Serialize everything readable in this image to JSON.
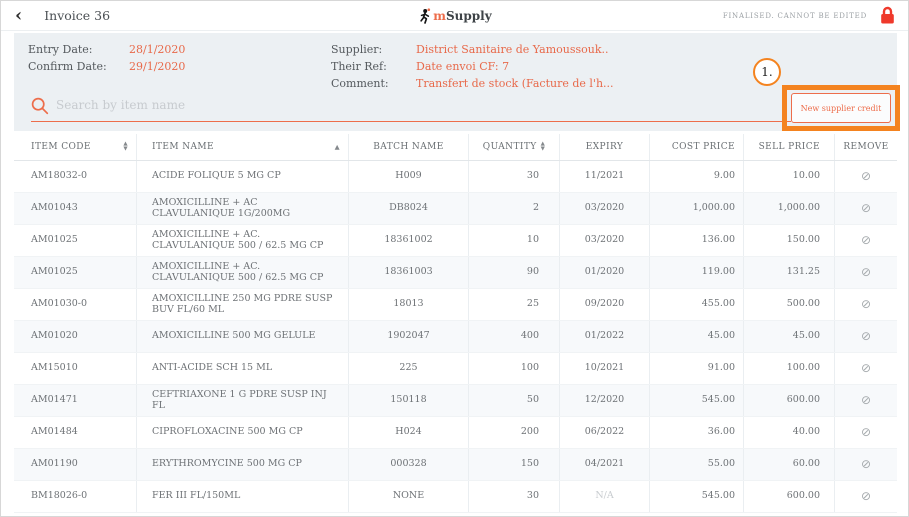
{
  "topbar": {
    "back_icon": "‹",
    "title": "Invoice 36",
    "logo_m": "m",
    "logo_rest": "Supply",
    "status": "FINALISED. CANNOT BE EDITED",
    "lock_icon": "lock"
  },
  "info": {
    "left": [
      {
        "label": "Entry Date:",
        "value": "28/1/2020"
      },
      {
        "label": "Confirm Date:",
        "value": "29/1/2020"
      }
    ],
    "right": [
      {
        "label": "Supplier:",
        "value": "District Sanitaire de Yamoussouk.."
      },
      {
        "label": "Their Ref:",
        "value": "Date envoi CF: 7"
      },
      {
        "label": "Comment:",
        "value": "Transfert de stock (Facture de l'h..."
      }
    ]
  },
  "search": {
    "placeholder": "Search by item name"
  },
  "annotation": {
    "step": "1."
  },
  "actions": {
    "new_supplier_credit": "New supplier credit"
  },
  "table": {
    "columns": [
      {
        "key": "code",
        "label": "ITEM CODE",
        "sort": "both"
      },
      {
        "key": "name",
        "label": "ITEM NAME",
        "sort": "asc"
      },
      {
        "key": "batch",
        "label": "BATCH NAME",
        "sort": "none"
      },
      {
        "key": "qty",
        "label": "QUANTITY",
        "sort": "both"
      },
      {
        "key": "expiry",
        "label": "EXPIRY",
        "sort": "none"
      },
      {
        "key": "cost",
        "label": "COST PRICE",
        "sort": "none"
      },
      {
        "key": "sell",
        "label": "SELL PRICE",
        "sort": "none"
      },
      {
        "key": "remove",
        "label": "REMOVE",
        "sort": "none"
      }
    ],
    "rows": [
      {
        "code": "AM18032-0",
        "name": "ACIDE FOLIQUE 5 MG CP",
        "batch": "H009",
        "qty": "30",
        "expiry": "11/2021",
        "cost": "9.00",
        "sell": "10.00"
      },
      {
        "code": "AM01043",
        "name": "AMOXICILLINE + AC CLAVULANIQUE 1G/200MG",
        "batch": "DB8024",
        "qty": "2",
        "expiry": "03/2020",
        "cost": "1,000.00",
        "sell": "1,000.00"
      },
      {
        "code": "AM01025",
        "name": "AMOXICILLINE + AC. CLAVULANIQUE 500 / 62.5 MG CP",
        "batch": "18361002",
        "qty": "10",
        "expiry": "03/2020",
        "cost": "136.00",
        "sell": "150.00"
      },
      {
        "code": "AM01025",
        "name": "AMOXICILLINE + AC. CLAVULANIQUE 500 / 62.5 MG CP",
        "batch": "18361003",
        "qty": "90",
        "expiry": "01/2020",
        "cost": "119.00",
        "sell": "131.25"
      },
      {
        "code": "AM01030-0",
        "name": "AMOXICILLINE 250 MG PDRE SUSP BUV FL/60 ML",
        "batch": "18013",
        "qty": "25",
        "expiry": "09/2020",
        "cost": "455.00",
        "sell": "500.00"
      },
      {
        "code": "AM01020",
        "name": "AMOXICILLINE 500 MG GELULE",
        "batch": "1902047",
        "qty": "400",
        "expiry": "01/2022",
        "cost": "45.00",
        "sell": "45.00"
      },
      {
        "code": "AM15010",
        "name": "ANTI-ACIDE SCH 15 ML",
        "batch": "225",
        "qty": "100",
        "expiry": "10/2021",
        "cost": "91.00",
        "sell": "100.00"
      },
      {
        "code": "AM01471",
        "name": "CEFTRIAXONE 1 G PDRE SUSP INJ FL",
        "batch": "150118",
        "qty": "50",
        "expiry": "12/2020",
        "cost": "545.00",
        "sell": "600.00"
      },
      {
        "code": "AM01484",
        "name": "CIPROFLOXACINE 500 MG CP",
        "batch": "H024",
        "qty": "200",
        "expiry": "06/2022",
        "cost": "36.00",
        "sell": "40.00"
      },
      {
        "code": "AM01190",
        "name": "ERYTHROMYCINE 500 MG CP",
        "batch": "000328",
        "qty": "150",
        "expiry": "04/2021",
        "cost": "55.00",
        "sell": "60.00"
      },
      {
        "code": "BM18026-0",
        "name": "FER III FL/150ML",
        "batch": "NONE",
        "qty": "30",
        "expiry": "N/A",
        "cost": "545.00",
        "sell": "600.00"
      }
    ],
    "remove_icon": "⊘"
  },
  "colors": {
    "accent_orange": "#ed6d4b",
    "annotation_orange": "#f4831f",
    "lock_red": "#ef392b",
    "panel_bg": "#ecf0f3"
  }
}
